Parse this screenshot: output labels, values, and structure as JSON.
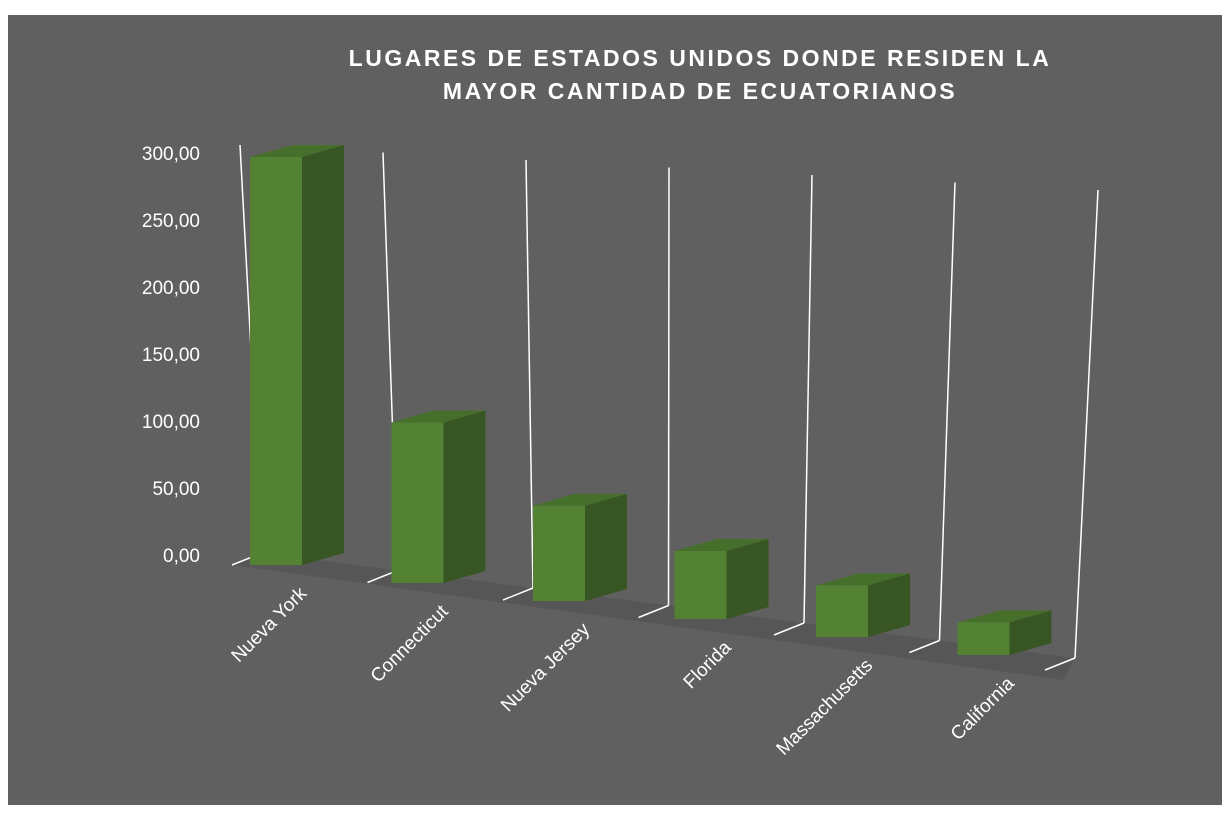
{
  "chart_data": {
    "type": "bar3d",
    "title": "LUGARES DE ESTADOS UNIDOS DONDE RESIDEN LA MAYOR CANTIDAD DE ECUATORIANOS",
    "categories": [
      "Nueva York",
      "Connecticut",
      "Nueva Jersey",
      "Florida",
      "Massachusetts",
      "California"
    ],
    "values": [
      300,
      118,
      70,
      50,
      38,
      24
    ],
    "color": "#548235",
    "ylim": [
      0,
      300
    ],
    "yticks": [
      {
        "value": 0,
        "label": "0,00"
      },
      {
        "value": 50,
        "label": "50,00"
      },
      {
        "value": 100,
        "label": "100,00"
      },
      {
        "value": 150,
        "label": "150,00"
      },
      {
        "value": 200,
        "label": "200,00"
      },
      {
        "value": 250,
        "label": "250,00"
      },
      {
        "value": 300,
        "label": "300,00"
      }
    ]
  }
}
